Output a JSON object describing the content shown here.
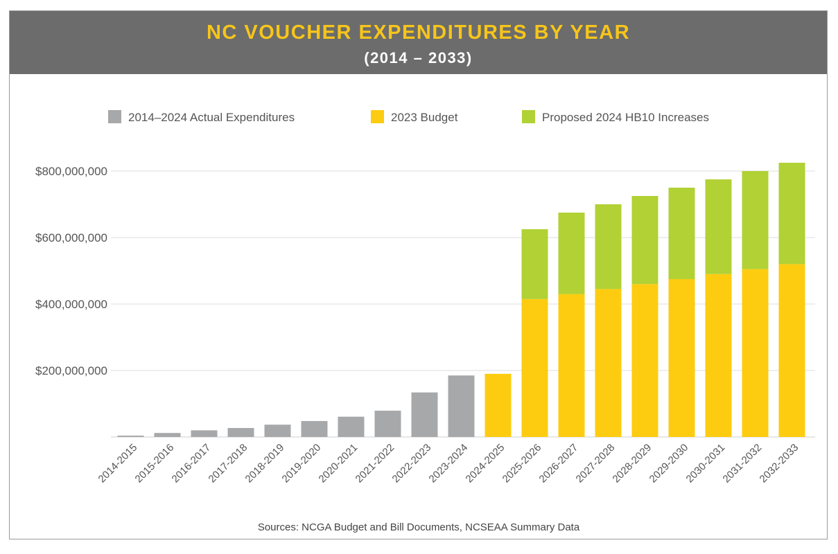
{
  "header": {
    "title": "NC VOUCHER EXPENDITURES BY YEAR",
    "subtitle": "(2014 – 2033)"
  },
  "colors": {
    "header_bg": "#6b6c6b",
    "title": "#f7c51b",
    "actual": "#a7a8aa",
    "budget": "#fdcc10",
    "proposed": "#b1d135",
    "grid": "#dcdcdc"
  },
  "source": "Sources: NCGA Budget and Bill Documents, NCSEAA Summary Data",
  "chart_data": {
    "type": "bar",
    "stacked": true,
    "legend_position": "top",
    "grid": true,
    "ylim": [
      0,
      850000000
    ],
    "yticks": [
      200000000,
      400000000,
      600000000,
      800000000
    ],
    "ytick_labels": [
      "$200,000,000",
      "$400,000,000",
      "$600,000,000",
      "$800,000,000"
    ],
    "categories": [
      "2014-2015",
      "2015-2016",
      "2016-2017",
      "2017-2018",
      "2018-2019",
      "2019-2020",
      "2020-2021",
      "2021-2022",
      "2022-2023",
      "2023-2024",
      "2024-2025",
      "2025-2026",
      "2026-2027",
      "2027-2028",
      "2028-2029",
      "2029-2030",
      "2030-2031",
      "2031-2032",
      "2032-2033"
    ],
    "series": [
      {
        "name": "2014–2024 Actual Expenditures",
        "color": "#a7a8aa",
        "values": [
          4000000,
          12000000,
          20000000,
          27000000,
          37000000,
          48000000,
          61000000,
          79000000,
          134000000,
          185000000,
          0,
          0,
          0,
          0,
          0,
          0,
          0,
          0,
          0
        ]
      },
      {
        "name": "2023 Budget",
        "color": "#fdcc10",
        "values": [
          0,
          0,
          0,
          0,
          0,
          0,
          0,
          0,
          0,
          0,
          190000000,
          415000000,
          430000000,
          445000000,
          460000000,
          475000000,
          490000000,
          505000000,
          520000000
        ]
      },
      {
        "name": "Proposed 2024 HB10 Increases",
        "color": "#b1d135",
        "values": [
          0,
          0,
          0,
          0,
          0,
          0,
          0,
          0,
          0,
          0,
          0,
          210000000,
          245000000,
          255000000,
          265000000,
          275000000,
          285000000,
          295000000,
          305000000
        ]
      }
    ]
  }
}
